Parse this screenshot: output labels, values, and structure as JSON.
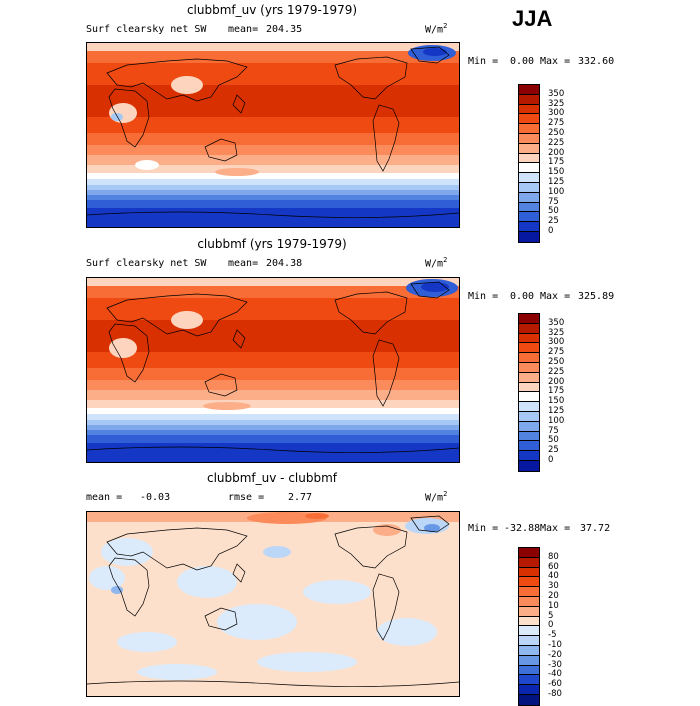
{
  "season": "JJA",
  "panels": [
    {
      "title": "clubbmf_uv (yrs 1979-1979)",
      "variable": "Surf clearsky net SW",
      "mean_label": "mean=",
      "mean_value": "204.35",
      "units": "W/m",
      "units_sup": "2",
      "min_label": "Min =",
      "min_value": "0.00",
      "max_label": "Max =",
      "max_value": "332.60",
      "colorbar_labels": [
        "350",
        "325",
        "300",
        "275",
        "250",
        "225",
        "200",
        "175",
        "150",
        "125",
        "100",
        "75",
        "50",
        "25",
        "0"
      ],
      "colorbar_colors": [
        "#8b0000",
        "#b51a00",
        "#d83000",
        "#ee4a12",
        "#f86c35",
        "#fb8b5a",
        "#fcae88",
        "#fdd4bd",
        "#ffffff",
        "#cfe3fb",
        "#a6c8f5",
        "#7ea7ec",
        "#5383e0",
        "#2f5ed6",
        "#1437c5",
        "#05189f"
      ]
    },
    {
      "title": "clubbmf (yrs 1979-1979)",
      "variable": "Surf clearsky net SW",
      "mean_label": "mean=",
      "mean_value": "204.38",
      "units": "W/m",
      "units_sup": "2",
      "min_label": "Min =",
      "min_value": "0.00",
      "max_label": "Max =",
      "max_value": "325.89",
      "colorbar_labels": [
        "350",
        "325",
        "300",
        "275",
        "250",
        "225",
        "200",
        "175",
        "150",
        "125",
        "100",
        "75",
        "50",
        "25",
        "0"
      ],
      "colorbar_colors": [
        "#8b0000",
        "#b51a00",
        "#d83000",
        "#ee4a12",
        "#f86c35",
        "#fb8b5a",
        "#fcae88",
        "#fdd4bd",
        "#ffffff",
        "#cfe3fb",
        "#a6c8f5",
        "#7ea7ec",
        "#5383e0",
        "#2f5ed6",
        "#1437c5",
        "#05189f"
      ]
    },
    {
      "title": "clubbmf_uv - clubbmf",
      "mean_label": "mean =",
      "mean_value": "-0.03",
      "rmse_label": "rmse =",
      "rmse_value": "2.77",
      "units": "W/m",
      "units_sup": "2",
      "min_label": "Min =",
      "min_value": "-32.88",
      "max_label": "Max =",
      "max_value": "37.72",
      "colorbar_labels": [
        "80",
        "60",
        "40",
        "30",
        "20",
        "10",
        "5",
        "0",
        "-5",
        "-10",
        "-20",
        "-30",
        "-40",
        "-60",
        "-80"
      ],
      "colorbar_colors": [
        "#8b0000",
        "#b51a00",
        "#d83000",
        "#ee4a12",
        "#f86c35",
        "#fb8b5a",
        "#fcae88",
        "#fde0cc",
        "#dcebfb",
        "#bcd6f7",
        "#8fb7ef",
        "#6797e5",
        "#3f70da",
        "#1f48cc",
        "#0b26ae",
        "#02127f"
      ]
    }
  ]
}
